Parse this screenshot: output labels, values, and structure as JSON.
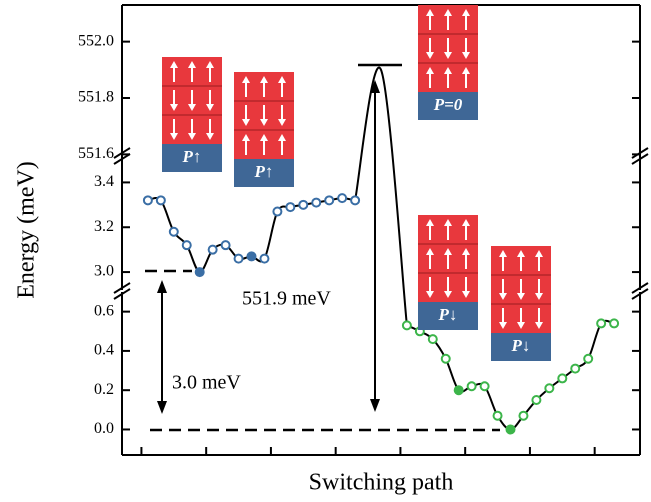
{
  "chart_data": {
    "type": "broken-axis-line",
    "ylabel": "Energy (meV)",
    "xlabel": "Switching path",
    "xlim": [
      0,
      40
    ],
    "xticks": [
      1.5,
      6.5,
      11.5,
      16.5,
      21.5,
      26.5,
      31.5,
      36.5
    ],
    "y_segments": [
      {
        "ylim": [
          -0.13,
          0.7
        ],
        "yticks": [
          {
            "value": 0,
            "label": "0.0"
          },
          0.2,
          0.4,
          0.6
        ]
      },
      {
        "ylim": [
          2.92,
          3.5
        ],
        "yticks": [
          {
            "value": 3,
            "label": "3.0"
          },
          3.2,
          3.4
        ]
      },
      {
        "ylim": [
          551.58,
          552.13
        ],
        "yticks": [
          551.6,
          551.8,
          {
            "value": 552,
            "label": "552.0"
          }
        ]
      }
    ],
    "series": [
      {
        "color": "#3a6ea5",
        "filled_points": [
          4,
          8
        ],
        "x": [
          2,
          3,
          4,
          5,
          6,
          7,
          8,
          9,
          10,
          11,
          12,
          13,
          14,
          15,
          16,
          17,
          18
        ],
        "values": [
          3.32,
          3.32,
          3.18,
          3.12,
          3.0,
          3.1,
          3.12,
          3.06,
          3.07,
          3.06,
          3.27,
          3.29,
          3.3,
          3.31,
          3.32,
          3.33,
          3.32
        ]
      },
      {
        "color": "#000000",
        "x": [
          18,
          20,
          22
        ],
        "values": [
          3.32,
          551.9,
          0.53
        ]
      },
      {
        "color": "#3cb54a",
        "filled_points": [
          4,
          8
        ],
        "x": [
          22,
          23,
          24,
          25,
          26,
          27,
          28,
          29,
          30,
          31,
          32,
          33,
          34,
          35,
          36,
          37,
          38
        ],
        "values": [
          0.53,
          0.5,
          0.46,
          0.36,
          0.2,
          0.22,
          0.22,
          0.07,
          0.0,
          0.07,
          0.15,
          0.21,
          0.26,
          0.31,
          0.36,
          0.54,
          0.54
        ]
      }
    ],
    "annotations": [
      "551.9 meV",
      "3.0 meV"
    ],
    "insets": [
      "P↑",
      "P↑",
      "P=0",
      "P↓",
      "P↓"
    ]
  }
}
